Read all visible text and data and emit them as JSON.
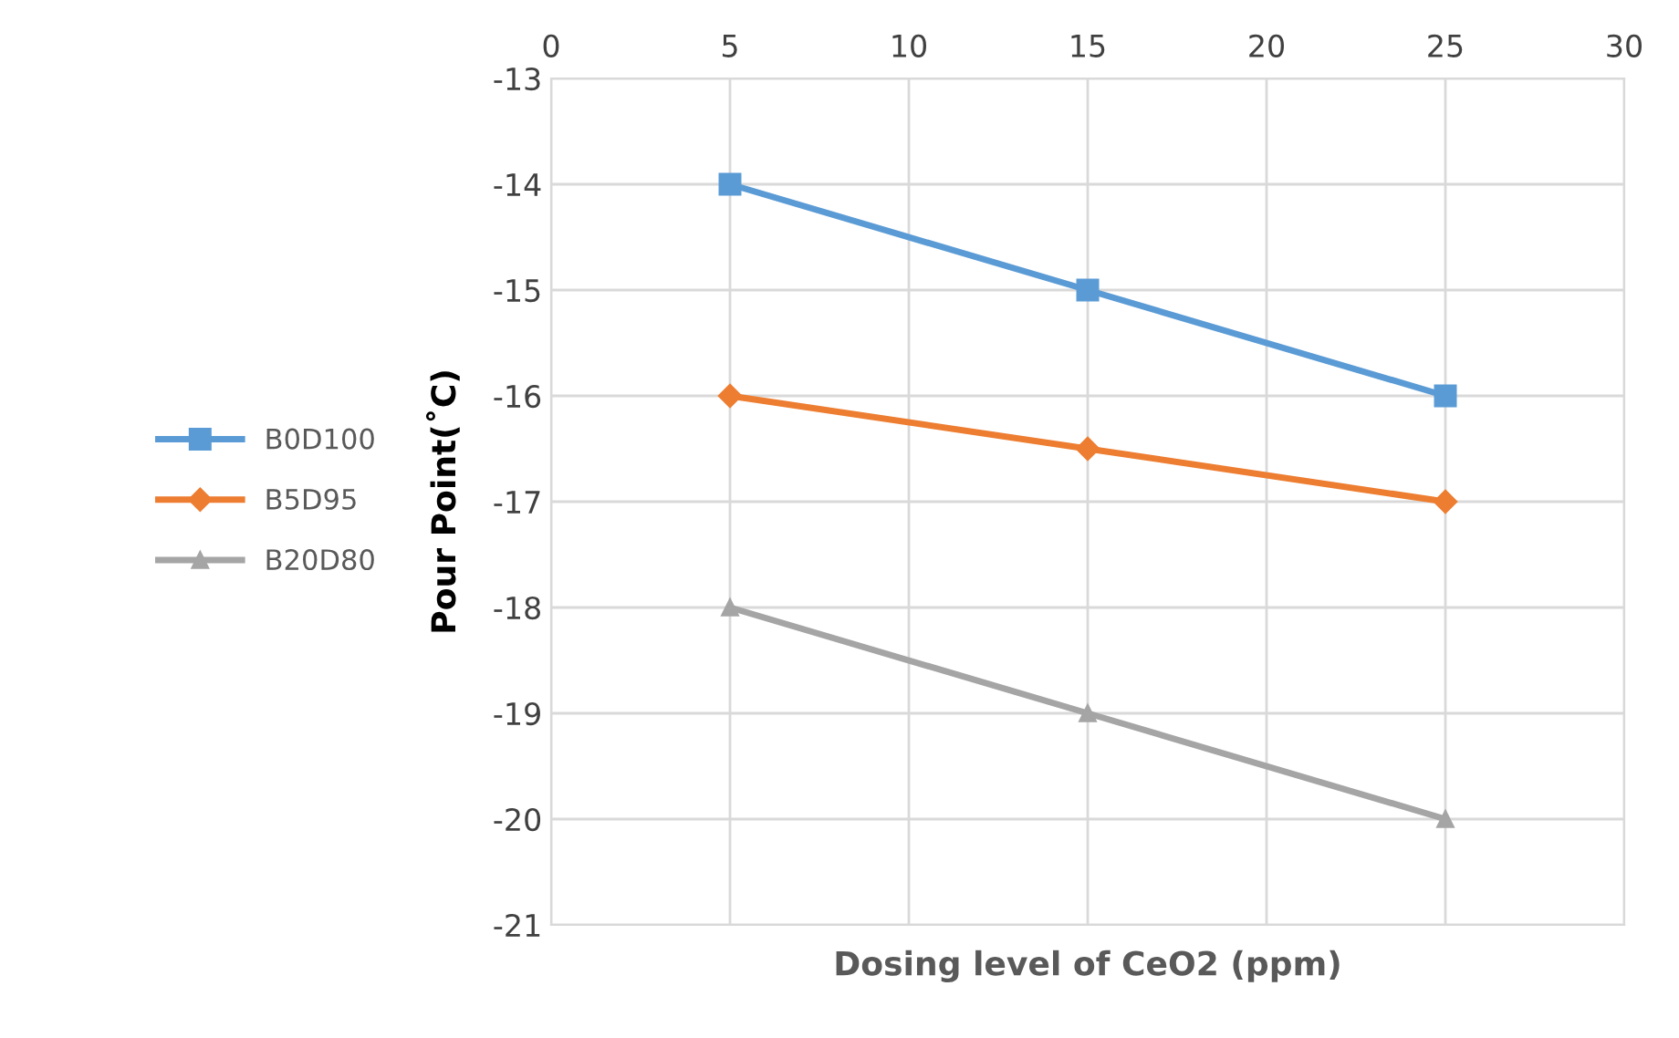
{
  "chart_data": {
    "type": "line",
    "xlabel": "Dosing level of CeO2 (ppm)",
    "ylabel": "Pour Point(˚C)",
    "x": [
      5,
      15,
      25
    ],
    "series": [
      {
        "name": "B0D100",
        "color": "#5b9bd5",
        "marker": "square",
        "values": [
          -14,
          -15,
          -16
        ]
      },
      {
        "name": "B5D95",
        "color": "#ed7d31",
        "marker": "diamond",
        "values": [
          -16,
          -16.5,
          -17
        ]
      },
      {
        "name": "B20D80",
        "color": "#a5a5a5",
        "marker": "triangle",
        "values": [
          -18,
          -19,
          -20
        ]
      }
    ],
    "xlim": [
      0,
      30
    ],
    "xticks": [
      0,
      5,
      10,
      15,
      20,
      25,
      30
    ],
    "ylim": [
      -21,
      -13
    ],
    "yticks": [
      -21,
      -20,
      -19,
      -18,
      -17,
      -16,
      -15,
      -14,
      -13
    ],
    "grid": true,
    "legend": "left",
    "line_style": "solid"
  }
}
